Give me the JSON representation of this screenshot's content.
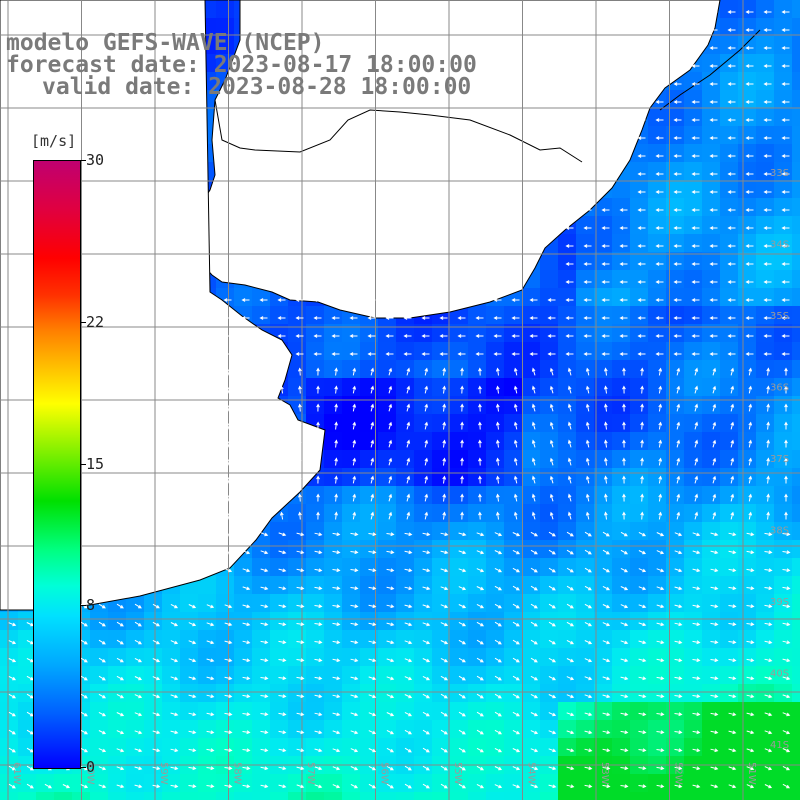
{
  "title": {
    "line1": "modelo GEFS-WAVE (NCEP)",
    "line2": "forecast date: 2023-08-17 18:00:00",
    "line3": "valid date: 2023-08-28 18:00:00"
  },
  "colorbar": {
    "unit": "[m/s]",
    "min": 0,
    "max": 30,
    "labels": [
      "30",
      "22",
      "15",
      "8",
      "0"
    ],
    "label_values": [
      30,
      22,
      15,
      8,
      0
    ],
    "colors": [
      "#0000ff",
      "#00a8ff",
      "#00ffd8",
      "#00e000",
      "#ffff00",
      "#ff8000",
      "#ff0000",
      "#c00070"
    ]
  },
  "map": {
    "lat_labels": [
      "33S",
      "34S",
      "35S",
      "36S",
      "37S",
      "38S",
      "39S",
      "40S",
      "41S"
    ],
    "lon_labels": [
      "61W",
      "60W",
      "59W",
      "58W",
      "57W",
      "56W",
      "55W",
      "54W",
      "53W",
      "52W",
      "51W"
    ],
    "land_color": "#ffffff",
    "grid_color": "#888888",
    "arrow_color": "#ffffff"
  }
}
